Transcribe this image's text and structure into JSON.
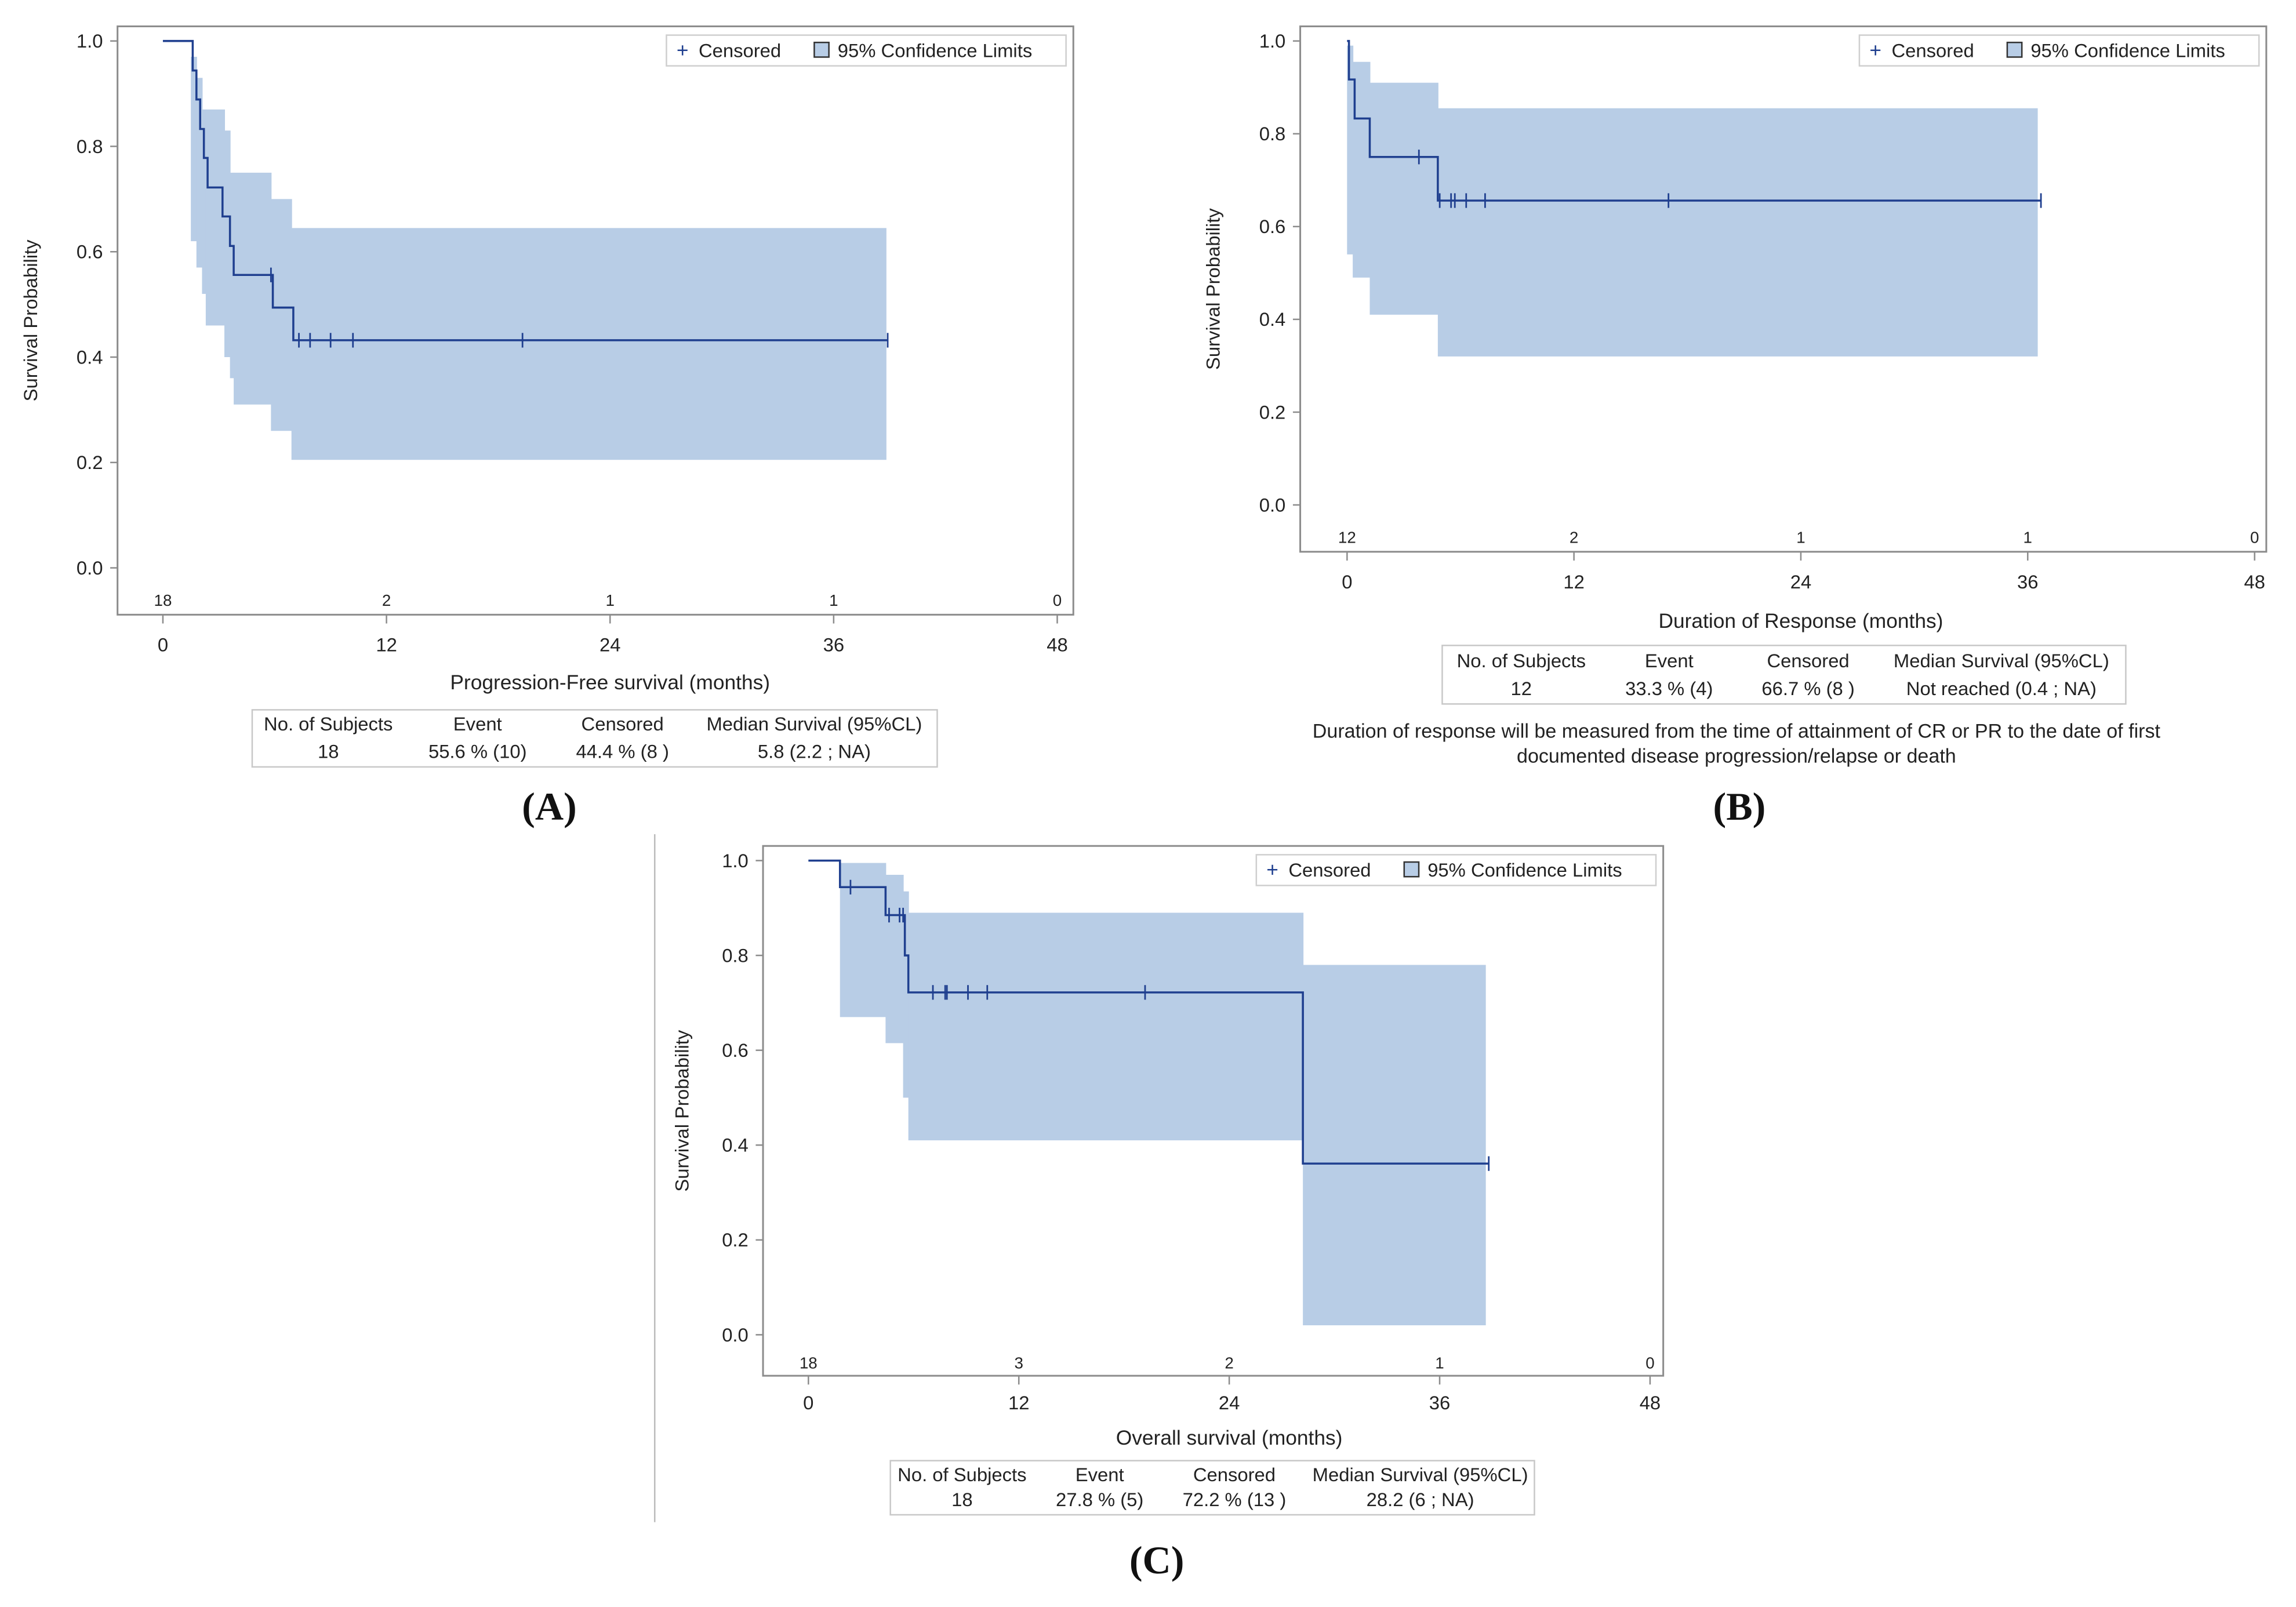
{
  "colors": {
    "line": "#1f3f8f",
    "band": "#b8cde6",
    "frame": "#8c8c8c",
    "text": "#222222"
  },
  "legend": {
    "censored": "Censored",
    "ci": "95% Confidence Limits"
  },
  "chart_data": [
    {
      "panel_label": "(A)",
      "type": "line",
      "title": "",
      "xlabel": "Progression-Free survival (months)",
      "ylabel": "Survival Probability",
      "xlim": [
        0,
        48
      ],
      "ylim": [
        0,
        1
      ],
      "xticks": [
        0,
        12,
        24,
        36,
        48
      ],
      "yticks": [
        "0.0",
        "0.2",
        "0.4",
        "0.6",
        "0.8",
        "1.0"
      ],
      "at_risk": [
        18,
        2,
        1,
        1,
        0
      ],
      "survival_steps": [
        [
          1.6,
          0.944
        ],
        [
          1.8,
          0.889
        ],
        [
          2.0,
          0.833
        ],
        [
          2.2,
          0.778
        ],
        [
          2.4,
          0.722
        ],
        [
          3.2,
          0.667
        ],
        [
          3.6,
          0.611
        ],
        [
          3.8,
          0.556
        ],
        [
          5.9,
          0.494
        ],
        [
          7.0,
          0.432
        ]
      ],
      "censored": [
        [
          5.8,
          0.556
        ],
        [
          7.3,
          0.432
        ],
        [
          7.9,
          0.432
        ],
        [
          9.0,
          0.432
        ],
        [
          10.2,
          0.432
        ],
        [
          19.3,
          0.432
        ],
        [
          38.9,
          0.432
        ]
      ],
      "ci_steps": [
        [
          1.5,
          0.62,
          0.97
        ],
        [
          1.8,
          0.57,
          0.93
        ],
        [
          2.1,
          0.52,
          0.87
        ],
        [
          2.3,
          0.46,
          0.87
        ],
        [
          3.3,
          0.4,
          0.83
        ],
        [
          3.6,
          0.36,
          0.75
        ],
        [
          3.8,
          0.31,
          0.75
        ],
        [
          5.8,
          0.26,
          0.7
        ],
        [
          6.9,
          0.205,
          0.645
        ]
      ],
      "ci_end": 38.8,
      "summary_table": {
        "headers": [
          "No. of Subjects",
          "Event",
          "Censored",
          "Median Survival (95%CL)"
        ],
        "values": [
          "18",
          "55.6 % (10)",
          "44.4 % (8 )",
          "5.8 (2.2 ; NA)"
        ]
      }
    },
    {
      "panel_label": "(B)",
      "type": "line",
      "title": "",
      "xlabel": "Duration of Response (months)",
      "ylabel": "Survival Probability",
      "xlim": [
        0,
        48
      ],
      "ylim": [
        0,
        1
      ],
      "xticks": [
        0,
        12,
        24,
        36,
        48
      ],
      "yticks": [
        "0.0",
        "0.2",
        "0.4",
        "0.6",
        "0.8",
        "1.0"
      ],
      "at_risk": [
        12,
        2,
        1,
        1,
        0
      ],
      "survival_steps": [
        [
          0.1,
          0.917
        ],
        [
          0.4,
          0.833
        ],
        [
          1.2,
          0.75
        ],
        [
          4.8,
          0.656
        ]
      ],
      "censored": [
        [
          3.8,
          0.75
        ],
        [
          4.9,
          0.656
        ],
        [
          5.5,
          0.656
        ],
        [
          5.7,
          0.656
        ],
        [
          6.3,
          0.656
        ],
        [
          7.3,
          0.656
        ],
        [
          17.0,
          0.656
        ],
        [
          36.7,
          0.656
        ]
      ],
      "ci_steps": [
        [
          0.0,
          0.54,
          0.99
        ],
        [
          0.3,
          0.49,
          0.955
        ],
        [
          1.2,
          0.41,
          0.91
        ],
        [
          4.8,
          0.32,
          0.855
        ]
      ],
      "ci_end": 36.5,
      "summary_table": {
        "headers": [
          "No. of Subjects",
          "Event",
          "Censored",
          "Median Survival (95%CL)"
        ],
        "values": [
          "12",
          "33.3 % (4)",
          "66.7 % (8 )",
          "Not reached (0.4 ; NA)"
        ]
      },
      "note": [
        "Duration of response will be measured from the time of attainment of CR or PR to the date of first",
        "documented disease progression/relapse or death"
      ]
    },
    {
      "panel_label": "(C)",
      "type": "line",
      "title": "",
      "xlabel": "Overall survival (months)",
      "ylabel": "Survival Probability",
      "xlim": [
        0,
        48
      ],
      "ylim": [
        0,
        1
      ],
      "xticks": [
        0,
        12,
        24,
        36,
        48
      ],
      "yticks": [
        "0.0",
        "0.2",
        "0.4",
        "0.6",
        "0.8",
        "1.0"
      ],
      "at_risk": [
        18,
        3,
        2,
        1,
        0
      ],
      "survival_steps": [
        [
          1.8,
          0.944
        ],
        [
          4.4,
          0.885
        ],
        [
          5.5,
          0.8
        ],
        [
          5.7,
          0.722
        ],
        [
          28.2,
          0.361
        ]
      ],
      "censored": [
        [
          2.4,
          0.944
        ],
        [
          4.6,
          0.885
        ],
        [
          5.2,
          0.885
        ],
        [
          5.4,
          0.885
        ],
        [
          7.1,
          0.722
        ],
        [
          7.8,
          0.722
        ],
        [
          7.9,
          0.722
        ],
        [
          9.1,
          0.722
        ],
        [
          10.2,
          0.722
        ],
        [
          19.2,
          0.722
        ],
        [
          38.8,
          0.361
        ]
      ],
      "ci_steps": [
        [
          1.8,
          0.67,
          0.995
        ],
        [
          4.4,
          0.615,
          0.97
        ],
        [
          5.4,
          0.5,
          0.935
        ],
        [
          5.7,
          0.41,
          0.89
        ],
        [
          28.2,
          0.02,
          0.78
        ]
      ],
      "ci_end": 38.6,
      "summary_table": {
        "headers": [
          "No. of Subjects",
          "Event",
          "Censored",
          "Median Survival (95%CL)"
        ],
        "values": [
          "18",
          "27.8 % (5)",
          "72.2 % (13 )",
          "28.2 (6 ; NA)"
        ]
      }
    }
  ]
}
